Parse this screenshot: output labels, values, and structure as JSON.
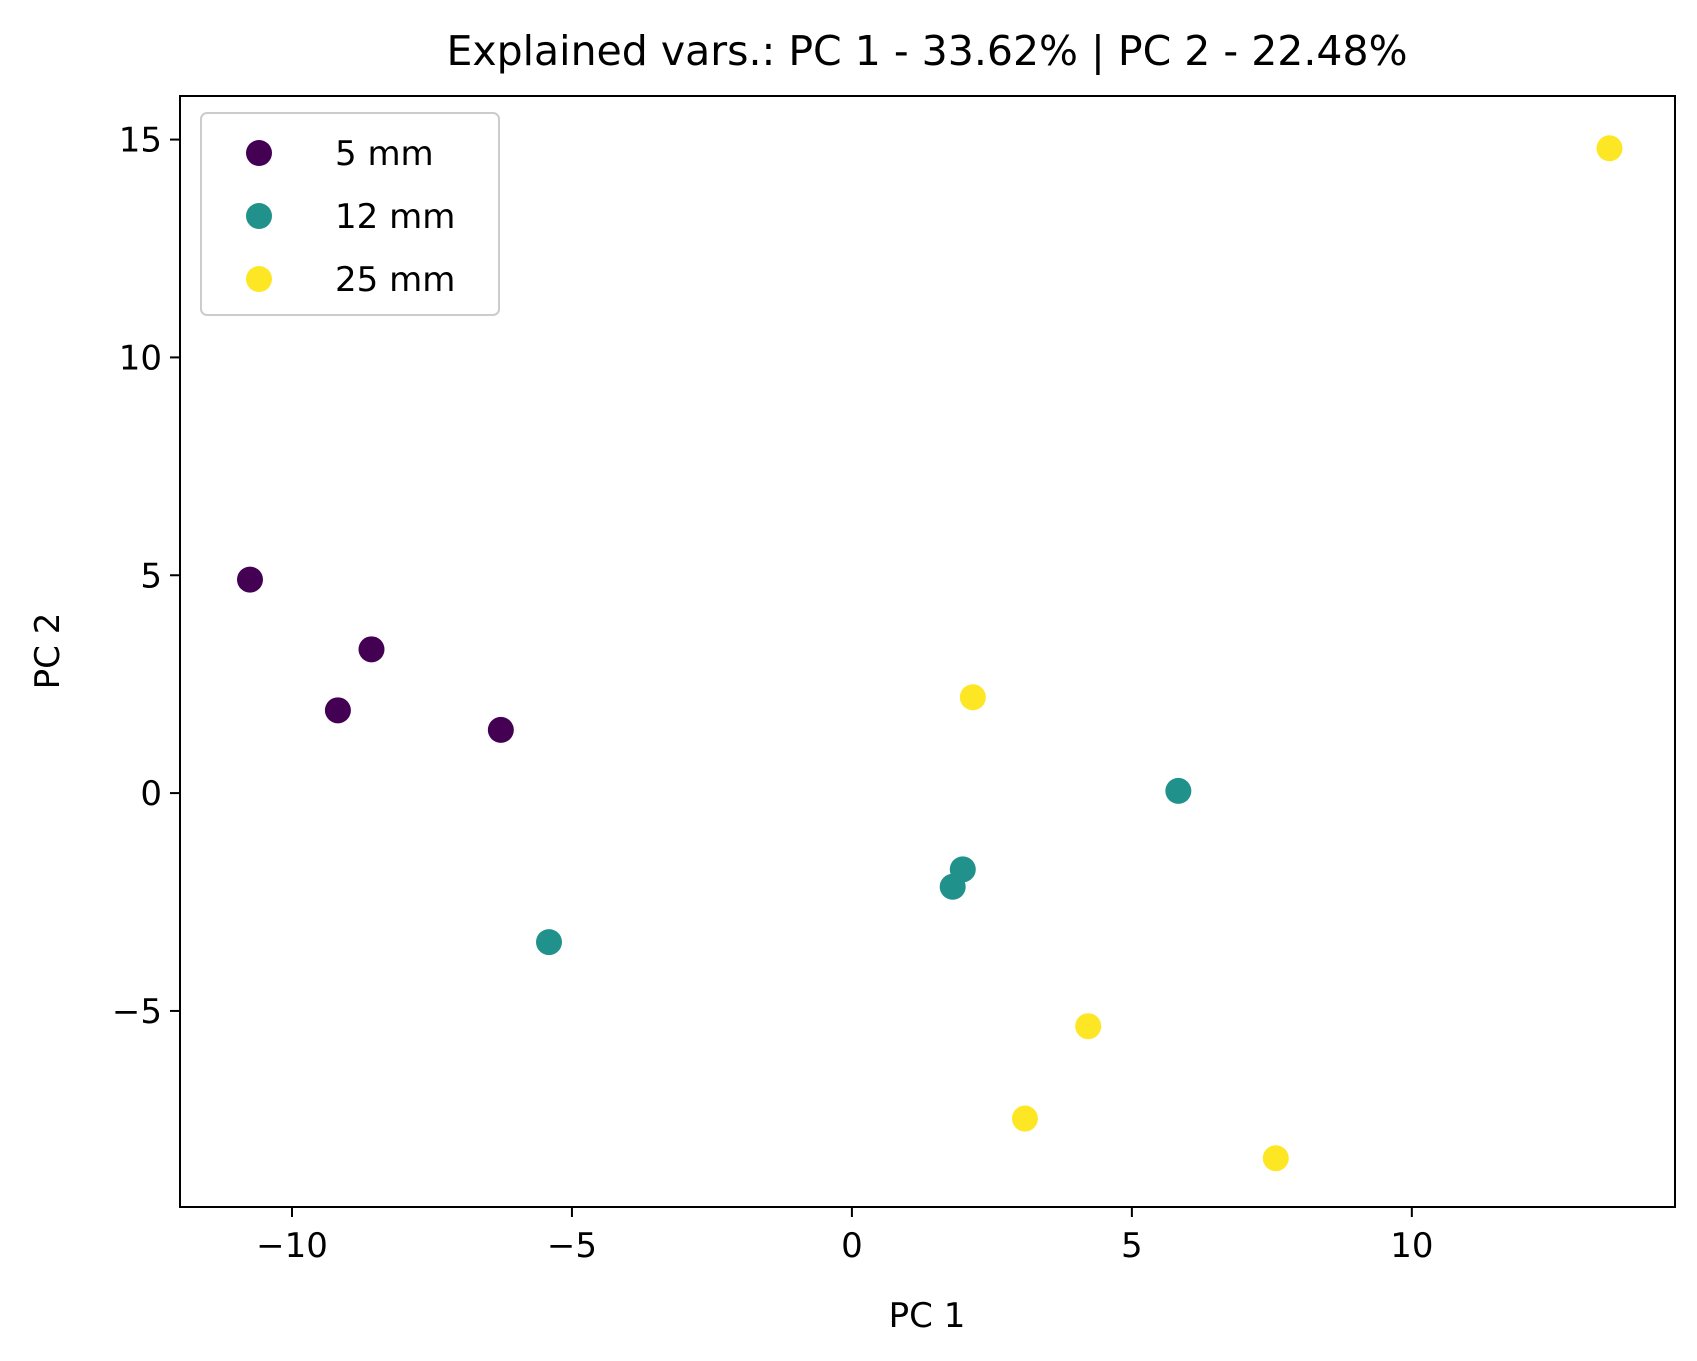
{
  "chart_data": {
    "type": "scatter",
    "title": "Explained vars.: PC 1 - 33.62% | PC 2 -  22.48%",
    "xlabel": "PC 1",
    "ylabel": "PC 2",
    "xlim": [
      -12.0,
      14.7
    ],
    "ylim": [
      -9.5,
      16.0
    ],
    "x_ticks": [
      -10,
      -5,
      0,
      5,
      10
    ],
    "x_tick_labels": [
      "−10",
      "−5",
      "0",
      "5",
      "10"
    ],
    "y_ticks": [
      -5,
      0,
      5,
      10,
      15
    ],
    "y_tick_labels": [
      "−5",
      "0",
      "5",
      "10",
      "15"
    ],
    "grid": false,
    "legend_position": "top-left",
    "series": [
      {
        "name": "5 mm",
        "color": "#440154",
        "points": [
          {
            "x": -10.75,
            "y": 4.9
          },
          {
            "x": -8.58,
            "y": 3.3
          },
          {
            "x": -9.18,
            "y": 1.9
          },
          {
            "x": -6.27,
            "y": 1.45
          }
        ]
      },
      {
        "name": "12 mm",
        "color": "#21918c",
        "points": [
          {
            "x": 5.83,
            "y": 0.05
          },
          {
            "x": 1.98,
            "y": -1.75
          },
          {
            "x": 1.8,
            "y": -2.15
          },
          {
            "x": -5.41,
            "y": -3.42
          }
        ]
      },
      {
        "name": "25 mm",
        "color": "#fde725",
        "points": [
          {
            "x": 13.53,
            "y": 14.8
          },
          {
            "x": 2.16,
            "y": 2.2
          },
          {
            "x": 4.22,
            "y": -5.35
          },
          {
            "x": 3.09,
            "y": -7.47
          },
          {
            "x": 7.57,
            "y": -8.38
          }
        ]
      }
    ]
  }
}
